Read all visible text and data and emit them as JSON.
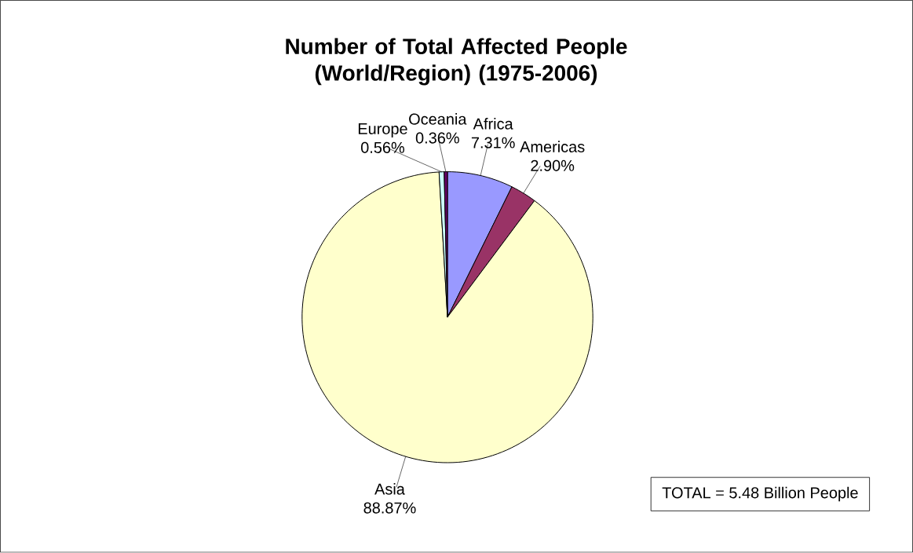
{
  "chart_data": {
    "type": "pie",
    "title": "Number of Total Affected People (World/Region) (1975-2006)",
    "categories": [
      "Africa",
      "Americas",
      "Asia",
      "Europe",
      "Oceania"
    ],
    "values": [
      7.31,
      2.9,
      88.87,
      0.56,
      0.36
    ],
    "colors": [
      "#9999ff",
      "#993366",
      "#ffffcc",
      "#ccffff",
      "#660066"
    ],
    "value_labels": [
      "7.31%",
      "2.90%",
      "88.87%",
      "0.56%",
      "0.36%"
    ],
    "annotations": [
      "TOTAL = 5.48 Billion People"
    ]
  }
}
